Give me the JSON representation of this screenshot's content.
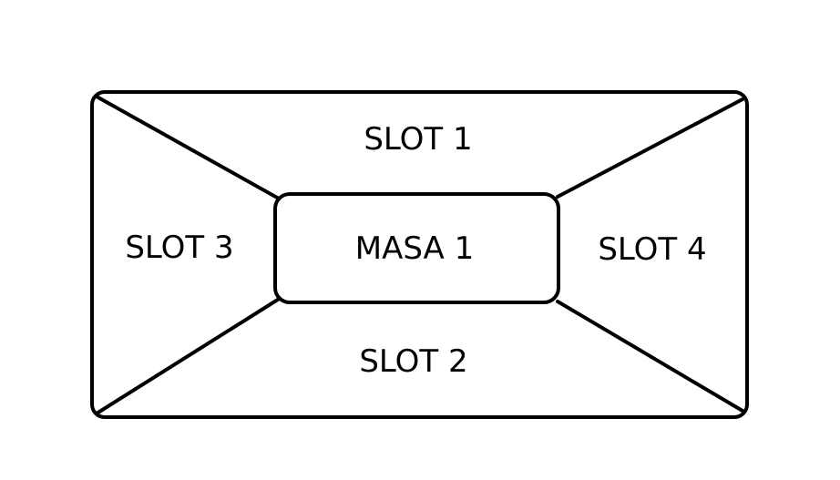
{
  "diagram": {
    "stroke_color": "#000000",
    "background": "#ffffff",
    "center": {
      "label": "MASA 1"
    },
    "regions": {
      "top": {
        "label": "SLOT 1"
      },
      "bottom": {
        "label": "SLOT 2"
      },
      "left": {
        "label": "SLOT 3"
      },
      "right": {
        "label": "SLOT 4"
      }
    }
  }
}
